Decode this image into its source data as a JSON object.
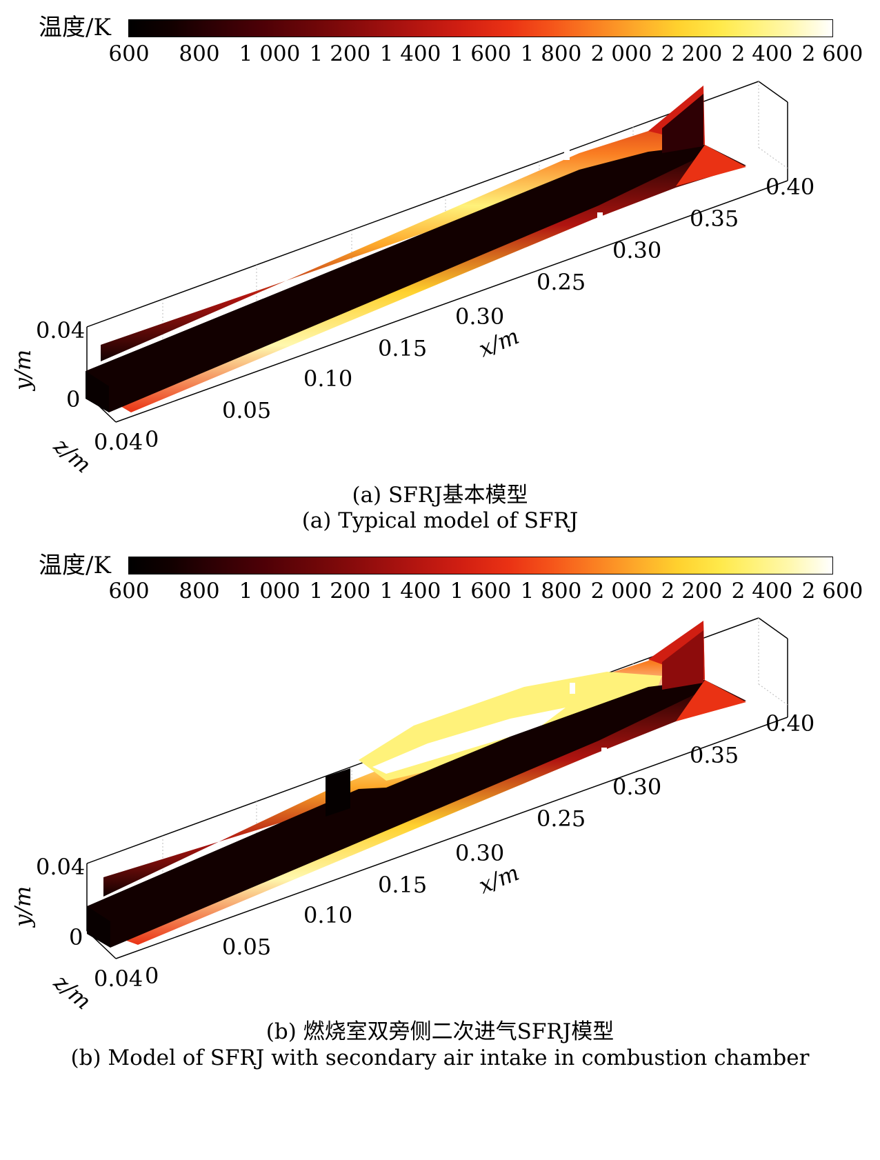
{
  "panels": [
    {
      "colorbar": {
        "label": "温度/K",
        "ticks": [
          "600",
          "800",
          "1 000",
          "1 200",
          "1 400",
          "1 600",
          "1 800",
          "2 000",
          "2 200",
          "2 400",
          "2 600"
        ],
        "min": 600,
        "max": 2600
      },
      "axes": {
        "x_ticks": [
          "0",
          "0.05",
          "0.10",
          "0.15",
          "0.30",
          "0.25",
          "0.30",
          "0.35",
          "0.40"
        ],
        "x_label": "x/m",
        "y_ticks": [
          "0",
          "0.04"
        ],
        "y_label": "y/m",
        "z_ticks": [
          "0.04"
        ],
        "z_label": "z/m"
      },
      "caption_cn": "(a) SFRJ基本模型",
      "caption_en": "(a) Typical model of SFRJ"
    },
    {
      "colorbar": {
        "label": "温度/K",
        "ticks": [
          "600",
          "800",
          "1 000",
          "1 200",
          "1 400",
          "1 600",
          "1 800",
          "2 000",
          "2 200",
          "2 400",
          "2 600"
        ],
        "min": 600,
        "max": 2600
      },
      "axes": {
        "x_ticks": [
          "0",
          "0.05",
          "0.10",
          "0.15",
          "0.30",
          "0.25",
          "0.30",
          "0.35",
          "0.40"
        ],
        "x_label": "x/m",
        "y_ticks": [
          "0",
          "0.04"
        ],
        "y_label": "y/m",
        "z_ticks": [
          "0.04"
        ],
        "z_label": "z/m"
      },
      "caption_cn": "(b) 燃烧室双旁侧二次进气SFRJ模型",
      "caption_en": "(b) Model of SFRJ with secondary air intake in combustion chamber"
    }
  ]
}
